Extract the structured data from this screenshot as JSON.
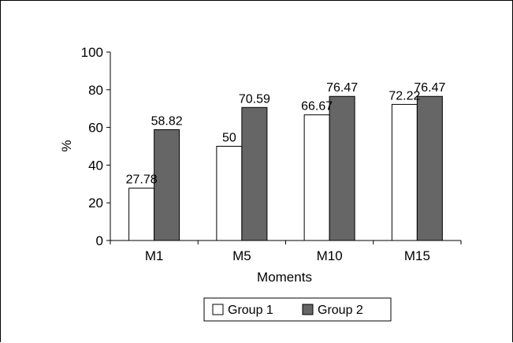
{
  "chart_data": {
    "type": "bar",
    "categories": [
      "M1",
      "M5",
      "M10",
      "M15"
    ],
    "series": [
      {
        "name": "Group 1",
        "values": [
          27.78,
          50,
          66.67,
          72.22
        ],
        "color": "#ffffff"
      },
      {
        "name": "Group 2",
        "values": [
          58.82,
          70.59,
          76.47,
          76.47
        ],
        "color": "#666666"
      }
    ],
    "value_labels": [
      [
        "27.78",
        "50",
        "66.67",
        "72.22"
      ],
      [
        "58.82",
        "70.59",
        "76.47",
        "76.47"
      ]
    ],
    "xlabel": "Moments",
    "ylabel": "%",
    "ylim": [
      0,
      100
    ],
    "yticks": [
      0,
      20,
      40,
      60,
      80,
      100
    ],
    "grid": false,
    "legend": "bottom-center"
  }
}
